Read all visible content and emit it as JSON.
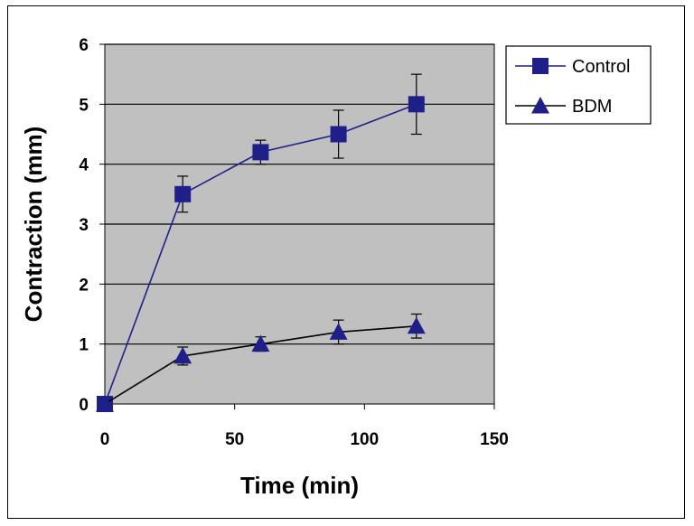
{
  "chart_data": {
    "type": "line",
    "title": "",
    "xlabel": "Time (min)",
    "ylabel": "Contraction (mm)",
    "xlim": [
      0,
      150
    ],
    "ylim": [
      0,
      6
    ],
    "xticks": [
      "0",
      "50",
      "100",
      "150"
    ],
    "yticks": [
      "0",
      "1",
      "2",
      "3",
      "4",
      "5",
      "6"
    ],
    "grid": "horizontal",
    "legend": "top-right",
    "series": [
      {
        "name": "Control",
        "color": "#1f1f8a",
        "marker": "square",
        "x": [
          0,
          30,
          60,
          90,
          120
        ],
        "y": [
          0,
          3.5,
          4.2,
          4.5,
          5.0
        ],
        "error": [
          0,
          0.3,
          0.2,
          0.4,
          0.5
        ]
      },
      {
        "name": "BDM",
        "color": "#000000",
        "marker_color": "#1f1f8a",
        "marker": "triangle",
        "x": [
          0,
          30,
          60,
          90,
          120
        ],
        "y": [
          0,
          0.8,
          1.0,
          1.2,
          1.3
        ],
        "error": [
          0,
          0.15,
          0.12,
          0.2,
          0.2
        ]
      }
    ]
  }
}
